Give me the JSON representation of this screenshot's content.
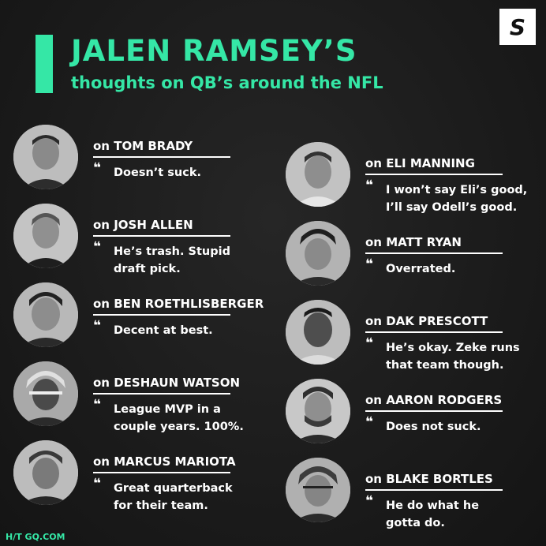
{
  "header": {
    "title": "JALEN RAMSEY’S",
    "subtitle": "thoughts on QB’s around the NFL"
  },
  "brand": {
    "logo_letter": "S",
    "accent_color": "#35e7a6"
  },
  "prefix": "on",
  "quote_icon": "❝",
  "left_column": [
    {
      "name": "TOM BRADY",
      "quote_1": "Doesn’t suck.",
      "quote_2": ""
    },
    {
      "name": "JOSH ALLEN",
      "quote_1": "He’s trash. Stupid",
      "quote_2": "draft pick."
    },
    {
      "name": "BEN ROETHLISBERGER",
      "quote_1": "Decent at best.",
      "quote_2": ""
    },
    {
      "name": "DESHAUN WATSON",
      "quote_1": "League MVP in a",
      "quote_2": "couple years. 100%."
    },
    {
      "name": "MARCUS MARIOTA",
      "quote_1": "Great quarterback",
      "quote_2": "for their team."
    }
  ],
  "right_column": [
    {
      "name": "ELI MANNING",
      "quote_1": "I won’t say Eli’s good,",
      "quote_2": "I’ll say Odell’s good."
    },
    {
      "name": "MATT RYAN",
      "quote_1": "Overrated.",
      "quote_2": ""
    },
    {
      "name": "DAK PRESCOTT",
      "quote_1": "He’s okay. Zeke runs",
      "quote_2": "that team though."
    },
    {
      "name": "AARON RODGERS",
      "quote_1": "Does not suck.",
      "quote_2": ""
    },
    {
      "name": "BLAKE BORTLES",
      "quote_1": "He do what he",
      "quote_2": "gotta do."
    }
  ],
  "footer": {
    "credit": "H/T GQ.COM"
  }
}
